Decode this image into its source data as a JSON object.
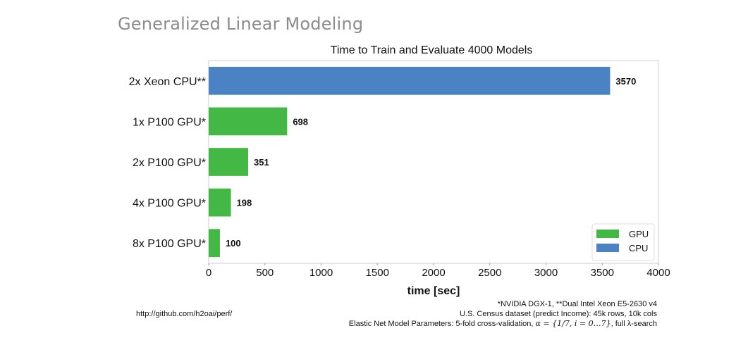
{
  "slide": {
    "title": "Generalized Linear Modeling"
  },
  "chart_data": {
    "type": "bar",
    "orientation": "horizontal",
    "title": "Time to Train and Evaluate 4000 Models",
    "xlabel": "time [sec]",
    "ylabel": "",
    "xlim": [
      0,
      4000
    ],
    "xticks": [
      0,
      500,
      1000,
      1500,
      2000,
      2500,
      3000,
      3500,
      4000
    ],
    "grid": false,
    "legend_position": "bottom-right",
    "categories": [
      "2x Xeon CPU**",
      "1x P100 GPU*",
      "2x P100 GPU*",
      "4x P100 GPU*",
      "8x P100 GPU*"
    ],
    "values": [
      3570,
      698,
      351,
      198,
      100
    ],
    "value_labels": [
      "3570",
      "698",
      "351",
      "198",
      "100"
    ],
    "bar_series": [
      "CPU",
      "GPU",
      "GPU",
      "GPU",
      "GPU"
    ],
    "series": [
      {
        "name": "GPU",
        "color": "#44b845"
      },
      {
        "name": "CPU",
        "color": "#4a82c4"
      }
    ]
  },
  "footer": {
    "source": "http://github.com/h2oai/perf/",
    "note1": "*NVIDIA DGX-1, **Dual Intel Xeon E5-2630 v4",
    "note2": "U.S. Census dataset (predict Income): 45k rows, 10k cols",
    "note3_prefix": "Elastic Net Model Parameters: 5-fold cross-validation, ",
    "note3_math": "α = {1/7, i = 0…7}",
    "note3_suffix": ", full λ-search"
  }
}
